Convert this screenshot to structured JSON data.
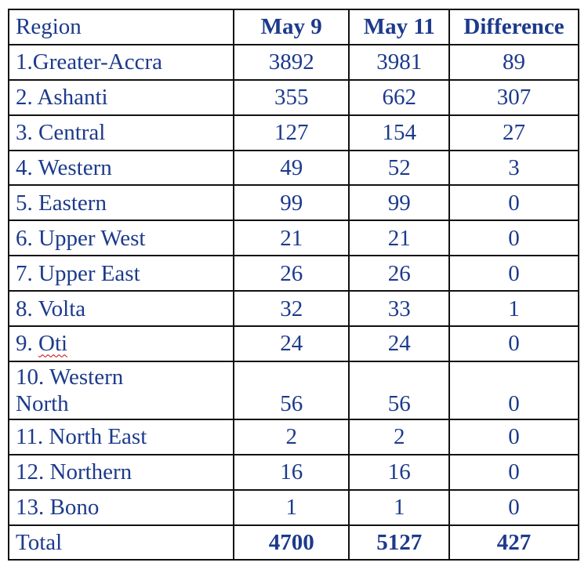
{
  "header": {
    "region": "Region",
    "may9": "May 9",
    "may11": "May 11",
    "difference": "Difference"
  },
  "rows": [
    {
      "region": "1.Greater-Accra",
      "may9": "3892",
      "may11": "3981",
      "difference": "89"
    },
    {
      "region": "2. Ashanti",
      "may9": "355",
      "may11": "662",
      "difference": "307"
    },
    {
      "region": "3. Central",
      "may9": "127",
      "may11": "154",
      "difference": "27"
    },
    {
      "region": "4. Western",
      "may9": "49",
      "may11": "52",
      "difference": "3"
    },
    {
      "region": "5. Eastern",
      "may9": "99",
      "may11": "99",
      "difference": "0"
    },
    {
      "region": "6. Upper West",
      "may9": "21",
      "may11": "21",
      "difference": "0"
    },
    {
      "region": "7. Upper East",
      "may9": "26",
      "may11": "26",
      "difference": "0"
    },
    {
      "region": "8. Volta",
      "may9": "32",
      "may11": "33",
      "difference": "1"
    },
    {
      "region_prefix": "9. ",
      "region_name": "Oti",
      "may9": "24",
      "may11": "24",
      "difference": "0"
    },
    {
      "region_line1": "10. Western",
      "region_line2": "North",
      "may9": "56",
      "may11": "56",
      "difference": "0"
    },
    {
      "region": "11. North East",
      "may9": "2",
      "may11": "2",
      "difference": "0"
    },
    {
      "region": "12. Northern",
      "may9": "16",
      "may11": "16",
      "difference": "0"
    },
    {
      "region": "13. Bono",
      "may9": "1",
      "may11": "1",
      "difference": "0"
    }
  ],
  "total": {
    "label": "Total",
    "may9": "4700",
    "may11": "5127",
    "difference": "427"
  }
}
